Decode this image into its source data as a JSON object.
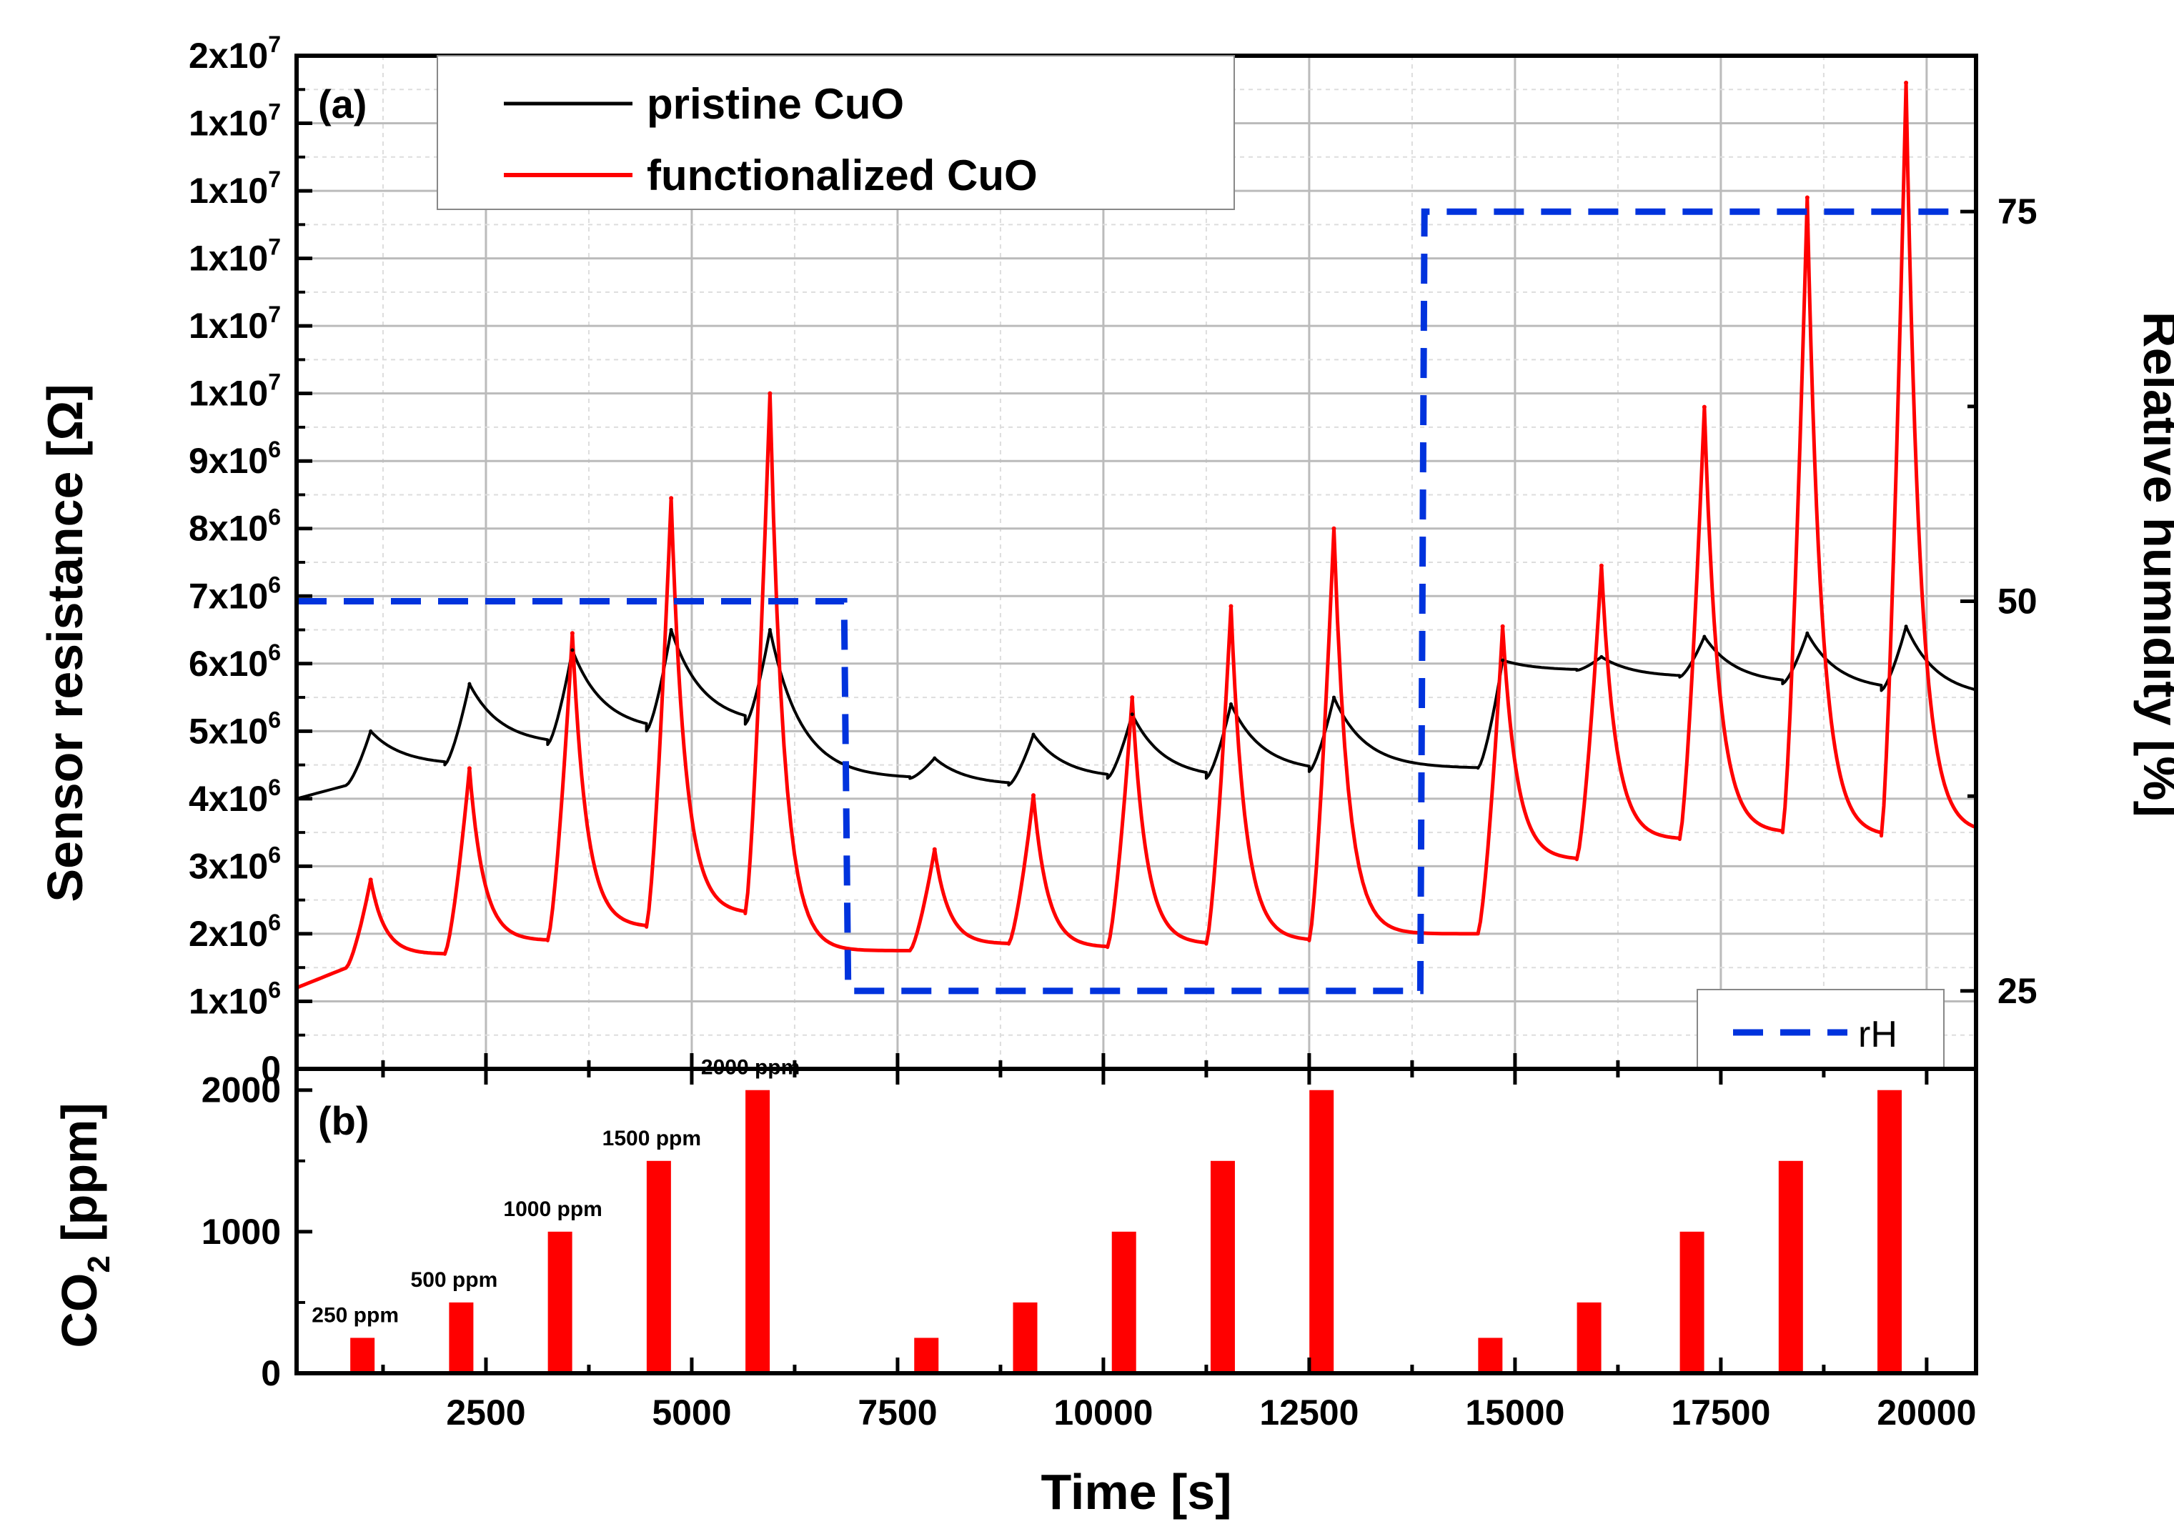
{
  "chart_data": [
    {
      "panel": "(a)",
      "type": "line",
      "xlabel": "Time [s]",
      "ylabel": "Sensor resistance [Ω]",
      "ylabel_right": "Relative humidity [%]",
      "xlim": [
        200,
        20600
      ],
      "ylim": [
        0,
        15000000
      ],
      "ylim_right": [
        20,
        85
      ],
      "ytick_labels": [
        {
          "value": 0,
          "label": "0"
        },
        {
          "value": 1000000,
          "mant": "1x10",
          "exp": "6"
        },
        {
          "value": 2000000,
          "mant": "2x10",
          "exp": "6"
        },
        {
          "value": 3000000,
          "mant": "3x10",
          "exp": "6"
        },
        {
          "value": 4000000,
          "mant": "4x10",
          "exp": "6"
        },
        {
          "value": 5000000,
          "mant": "5x10",
          "exp": "6"
        },
        {
          "value": 6000000,
          "mant": "6x10",
          "exp": "6"
        },
        {
          "value": 7000000,
          "mant": "7x10",
          "exp": "6"
        },
        {
          "value": 8000000,
          "mant": "8x10",
          "exp": "6"
        },
        {
          "value": 9000000,
          "mant": "9x10",
          "exp": "6"
        },
        {
          "value": 10000000,
          "mant": "1x10",
          "exp": "7"
        },
        {
          "value": 11000000,
          "mant": "1x10",
          "exp": "7"
        },
        {
          "value": 12000000,
          "mant": "1x10",
          "exp": "7"
        },
        {
          "value": 13000000,
          "mant": "1x10",
          "exp": "7"
        },
        {
          "value": 14000000,
          "mant": "1x10",
          "exp": "7"
        },
        {
          "value": 15000000,
          "mant": "2x10",
          "exp": "7"
        }
      ],
      "ytick_right": [
        25,
        50,
        75
      ],
      "legend": {
        "placement": "top-left",
        "entries": [
          "pristine CuO",
          "functionalized CuO"
        ]
      },
      "legend2": {
        "placement": "bottom-right",
        "entries": [
          "rH"
        ]
      },
      "series": [
        {
          "name": "pristine CuO",
          "color": "#000000",
          "baseline": [
            4000000,
            4200000,
            4500000,
            4800000,
            5000000,
            5100000,
            4300000,
            4200000,
            4300000,
            4300000,
            4400000,
            4450000,
            5900000,
            5800000,
            5700000,
            5600000,
            5500000,
            5500000
          ],
          "peaks": [
            [
              1100,
              5000000
            ],
            [
              2300,
              5700000
            ],
            [
              3550,
              6200000
            ],
            [
              4750,
              6500000
            ],
            [
              5950,
              6500000
            ],
            [
              7950,
              4600000
            ],
            [
              9150,
              4950000
            ],
            [
              10350,
              5250000
            ],
            [
              11550,
              5400000
            ],
            [
              12800,
              5500000
            ],
            [
              14850,
              6050000
            ],
            [
              16050,
              6100000
            ],
            [
              17300,
              6400000
            ],
            [
              18550,
              6450000
            ],
            [
              19750,
              6550000
            ]
          ]
        },
        {
          "name": "functionalized CuO",
          "color": "#ff0000",
          "baseline": [
            1200000,
            1500000,
            1700000,
            1900000,
            2100000,
            2300000,
            1750000,
            1850000,
            1800000,
            1850000,
            1900000,
            2000000,
            3100000,
            3400000,
            3500000,
            3450000,
            3500000,
            3800000
          ],
          "peaks": [
            [
              1100,
              2800000
            ],
            [
              2300,
              4450000
            ],
            [
              3550,
              6450000
            ],
            [
              4750,
              8450000
            ],
            [
              5950,
              10000000
            ],
            [
              7950,
              3250000
            ],
            [
              9150,
              4050000
            ],
            [
              10350,
              5500000
            ],
            [
              11550,
              6850000
            ],
            [
              12800,
              8000000
            ],
            [
              14850,
              6550000
            ],
            [
              16050,
              7450000
            ],
            [
              17300,
              9800000
            ],
            [
              18550,
              12900000
            ],
            [
              19750,
              14600000
            ]
          ]
        },
        {
          "name": "rH",
          "color": "#0033dd",
          "axis": "right",
          "style": "dashed",
          "x": [
            200,
            6850,
            6900,
            13850,
            13900,
            20400
          ],
          "y": [
            50,
            50,
            25,
            25,
            75,
            75
          ]
        }
      ]
    },
    {
      "panel": "(b)",
      "type": "bar",
      "ylabel": "CO2 [ppm]",
      "xlabel": "Time [s]",
      "xlim": [
        200,
        20600
      ],
      "ylim": [
        0,
        2150
      ],
      "yticks": [
        0,
        1000,
        2000
      ],
      "xticks": [
        2500,
        5000,
        7500,
        10000,
        12500,
        15000,
        17500,
        20000
      ],
      "bar_color": "#ff0000",
      "bars": [
        {
          "t": 1000,
          "ppm": 250,
          "label": "250 ppm"
        },
        {
          "t": 2200,
          "ppm": 500,
          "label": "500 ppm"
        },
        {
          "t": 3400,
          "ppm": 1000,
          "label": "1000 ppm"
        },
        {
          "t": 4600,
          "ppm": 1500,
          "label": "1500 ppm"
        },
        {
          "t": 5800,
          "ppm": 2000,
          "label": "2000 ppm"
        },
        {
          "t": 7850,
          "ppm": 250
        },
        {
          "t": 9050,
          "ppm": 500
        },
        {
          "t": 10250,
          "ppm": 1000
        },
        {
          "t": 11450,
          "ppm": 1500
        },
        {
          "t": 12650,
          "ppm": 2000
        },
        {
          "t": 14700,
          "ppm": 250
        },
        {
          "t": 15900,
          "ppm": 500
        },
        {
          "t": 17150,
          "ppm": 1000
        },
        {
          "t": 18350,
          "ppm": 1500
        },
        {
          "t": 19550,
          "ppm": 2000
        }
      ]
    }
  ]
}
